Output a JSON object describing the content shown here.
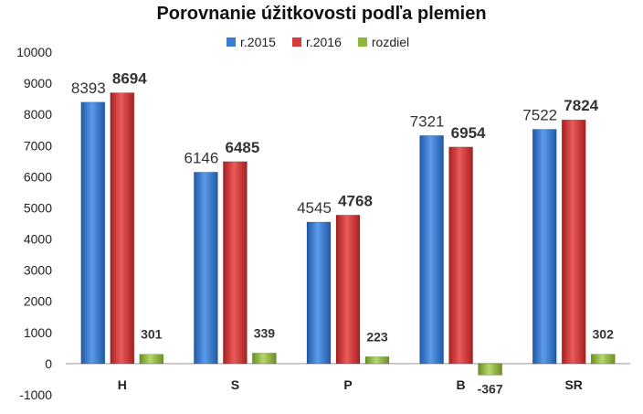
{
  "chart_data": {
    "type": "bar",
    "title": "Porovnanie úžitkovosti podľa plemien",
    "categories": [
      "H",
      "S",
      "P",
      "B",
      "SR"
    ],
    "series": [
      {
        "name": "r.2015",
        "values": [
          8393,
          6146,
          4545,
          7321,
          7522
        ],
        "color": "#3a7bd5",
        "label_bold": false
      },
      {
        "name": "r.2016",
        "values": [
          8694,
          6485,
          4768,
          6954,
          7824
        ],
        "color": "#d63a3a",
        "label_bold": true
      },
      {
        "name": "rozdiel",
        "values": [
          301,
          339,
          223,
          -367,
          302
        ],
        "color": "#8fb83a",
        "label_bold": true
      }
    ],
    "ylim": [
      -1000,
      10000
    ],
    "yticks": [
      "-1000",
      "0",
      "1000",
      "2000",
      "3000",
      "4000",
      "5000",
      "6000",
      "7000",
      "8000",
      "9000",
      "10000"
    ],
    "xlabel": "",
    "ylabel": "",
    "legend_position": "top",
    "grid": false
  }
}
